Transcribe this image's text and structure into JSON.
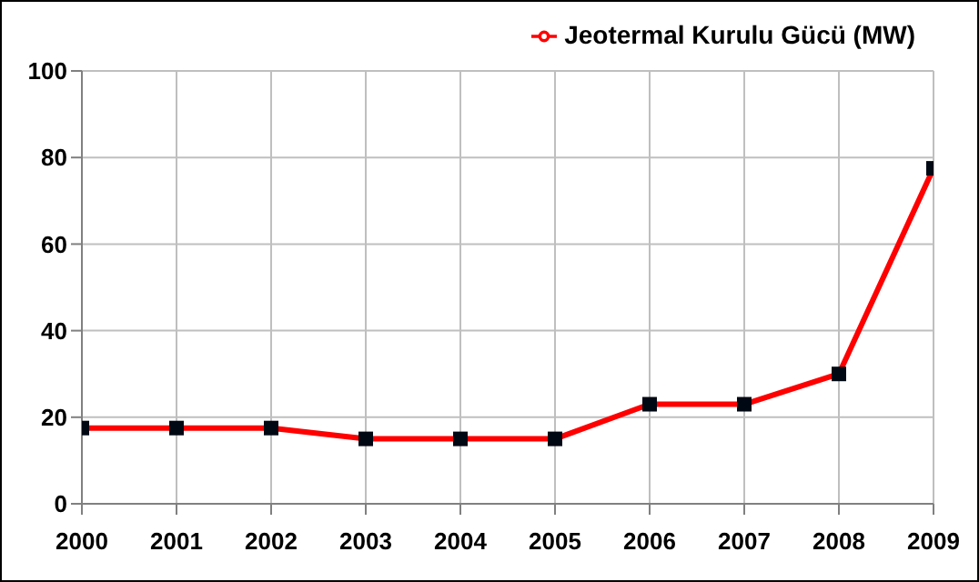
{
  "chart_data": {
    "type": "line",
    "categories": [
      "2000",
      "2001",
      "2002",
      "2003",
      "2004",
      "2005",
      "2006",
      "2007",
      "2008",
      "2009"
    ],
    "series": [
      {
        "name": "Jeotermal Kurulu Gücü (MW)",
        "color": "#ff0000",
        "values": [
          17.5,
          17.5,
          17.5,
          15,
          15,
          15,
          23,
          23,
          30,
          77.5
        ]
      }
    ],
    "ylim": [
      0,
      100
    ],
    "yticks": [
      0,
      20,
      40,
      60,
      80,
      100
    ],
    "grid": true,
    "legend": "top right",
    "marker": "square",
    "line_style": "solid"
  }
}
